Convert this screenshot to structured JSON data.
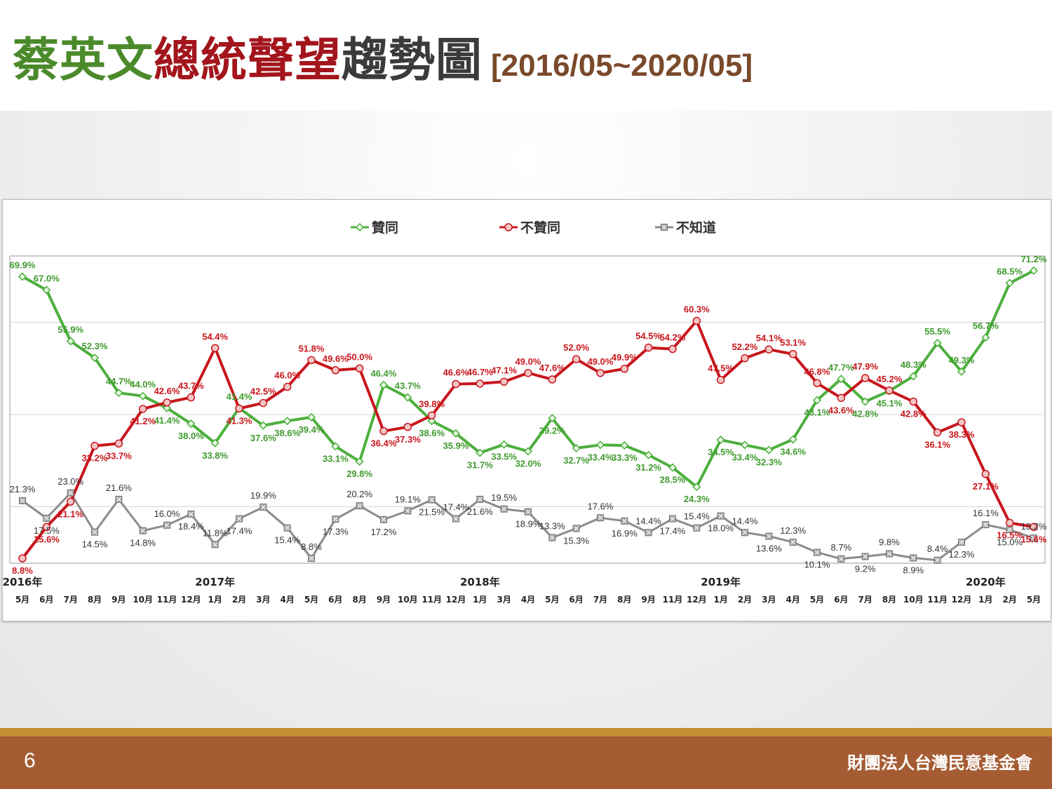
{
  "header": {
    "title_part1": "蔡英文",
    "title_part2": "總統聲望",
    "title_part3": "趨勢圖",
    "title_range": "[2016/05~2020/05]"
  },
  "footer": {
    "page_number": "6",
    "org_name": "財團法人台灣民意基金會"
  },
  "colors": {
    "approve": "#4caf3d",
    "disapprove": "#c8161d",
    "unknown": "#8c8c8c",
    "title_green": "#4b8a2b",
    "title_red": "#a3151c",
    "footer_brown": "#a55c33",
    "footer_gold": "#c68e34"
  },
  "chart_data": {
    "type": "line",
    "title": "",
    "xlabel": "",
    "ylabel": "",
    "ylim": [
      0,
      80
    ],
    "grid": "horizontal",
    "legend_position": "top-center",
    "x": [
      "5月",
      "6月",
      "7月",
      "8月",
      "9月",
      "10月",
      "11月",
      "12月",
      "1月",
      "2月",
      "3月",
      "4月",
      "5月",
      "6月",
      "8月",
      "9月",
      "10月",
      "11月",
      "12月",
      "1月",
      "3月",
      "4月",
      "5月",
      "6月",
      "7月",
      "8月",
      "9月",
      "11月",
      "12月",
      "1月",
      "2月",
      "3月",
      "4月",
      "5月",
      "6月",
      "7月",
      "8月",
      "10月",
      "11月",
      "12月",
      "1月",
      "2月",
      "5月"
    ],
    "year_labels": [
      {
        "index": 0,
        "label": "2016年"
      },
      {
        "index": 8,
        "label": "2017年"
      },
      {
        "index": 19,
        "label": "2018年"
      },
      {
        "index": 29,
        "label": "2019年"
      },
      {
        "index": 40,
        "label": "2020年"
      }
    ],
    "series": [
      {
        "name": "贊同",
        "color": "#4caf3d",
        "values": [
          69.9,
          67.0,
          55.9,
          52.3,
          44.7,
          44.0,
          41.4,
          38.0,
          33.8,
          41.4,
          37.6,
          38.6,
          39.4,
          33.1,
          29.8,
          46.4,
          43.7,
          38.6,
          35.9,
          31.7,
          33.5,
          32.0,
          39.2,
          32.7,
          33.4,
          33.3,
          31.2,
          28.5,
          24.3,
          34.5,
          33.4,
          32.3,
          34.6,
          43.1,
          47.7,
          42.8,
          45.1,
          48.3,
          55.5,
          49.3,
          56.7,
          68.5,
          71.2
        ]
      },
      {
        "name": "不贊同",
        "color": "#c8161d",
        "values": [
          8.8,
          15.6,
          21.1,
          33.2,
          33.7,
          41.2,
          42.6,
          43.7,
          54.4,
          41.3,
          42.5,
          46.0,
          51.8,
          49.6,
          50.0,
          36.4,
          37.3,
          39.8,
          46.6,
          46.7,
          47.1,
          49.0,
          47.6,
          52.0,
          49.0,
          49.9,
          54.5,
          54.2,
          60.3,
          47.5,
          52.2,
          54.1,
          53.1,
          46.8,
          43.6,
          47.9,
          45.2,
          42.8,
          36.1,
          38.3,
          27.1,
          16.5,
          15.6
        ]
      },
      {
        "name": "不知道",
        "color": "#8c8c8c",
        "values": [
          21.3,
          17.5,
          23.0,
          14.5,
          21.6,
          14.8,
          16.0,
          18.4,
          11.8,
          17.4,
          19.9,
          15.4,
          8.8,
          17.3,
          20.2,
          17.2,
          19.1,
          21.5,
          17.4,
          21.6,
          19.5,
          18.9,
          13.3,
          15.3,
          17.6,
          16.9,
          14.4,
          17.4,
          15.4,
          18.0,
          14.4,
          13.6,
          12.3,
          10.1,
          8.7,
          9.2,
          9.8,
          8.9,
          8.4,
          12.3,
          16.1,
          15.0,
          13.2
        ]
      }
    ]
  }
}
